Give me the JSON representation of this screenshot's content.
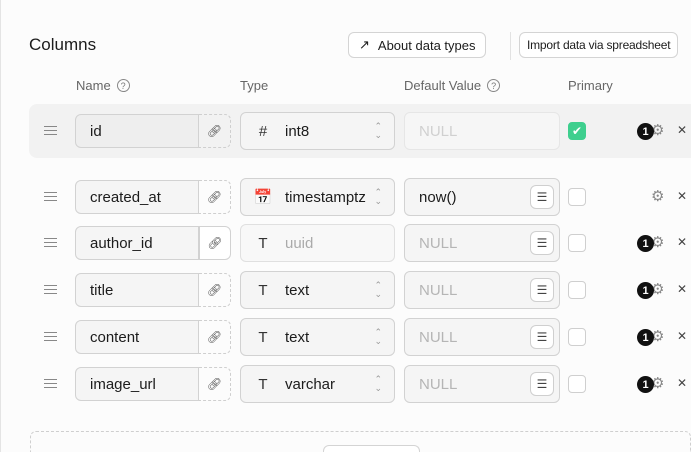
{
  "title": "Columns",
  "toolbar": {
    "about_label": "About data types",
    "import_label": "Import data via spreadsheet"
  },
  "headers": {
    "name": "Name",
    "type": "Type",
    "default": "Default Value",
    "primary": "Primary"
  },
  "accent": "#3ecf8e",
  "rows": [
    {
      "name": "id",
      "type": "int8",
      "type_icon": "hash-icon",
      "type_glyph": "#",
      "default": "NULL",
      "default_placeholder": true,
      "primary": true,
      "badge": "1",
      "highlighted": true,
      "default_disabled": true
    },
    {
      "name": "created_at",
      "type": "timestamptz",
      "type_icon": "calendar-icon",
      "type_glyph": "📅",
      "default": "now()",
      "default_placeholder": false,
      "primary": false,
      "badge": null
    },
    {
      "name": "author_id",
      "type": "uuid",
      "type_icon": "text-icon",
      "type_glyph": "T",
      "default": "NULL",
      "default_placeholder": true,
      "primary": false,
      "badge": "1",
      "type_disabled": true
    },
    {
      "name": "title",
      "type": "text",
      "type_icon": "text-icon",
      "type_glyph": "T",
      "default": "NULL",
      "default_placeholder": true,
      "primary": false,
      "badge": "1"
    },
    {
      "name": "content",
      "type": "text",
      "type_icon": "text-icon",
      "type_glyph": "T",
      "default": "NULL",
      "default_placeholder": true,
      "primary": false,
      "badge": "1"
    },
    {
      "name": "image_url",
      "type": "varchar",
      "type_icon": "text-icon",
      "type_glyph": "T",
      "default": "NULL",
      "default_placeholder": true,
      "primary": false,
      "badge": "1"
    }
  ]
}
